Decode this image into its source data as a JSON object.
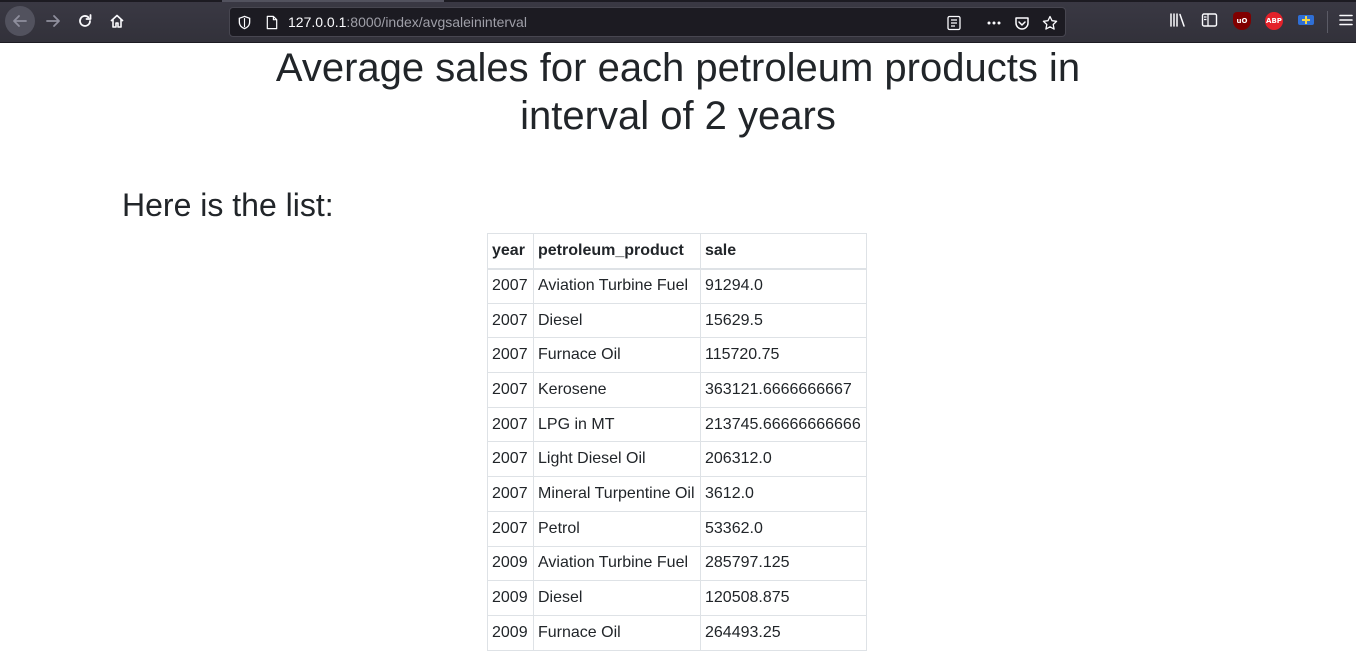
{
  "browser": {
    "url_host": "127.0.0.1",
    "url_path": ":8000/index/avgsaleininterval",
    "extensions": [
      "uBlock Origin",
      "ABP"
    ],
    "extension_labels": {
      "ublock": "uO",
      "abp": "ABP"
    }
  },
  "page": {
    "title": "Average sales for each petroleum products in interval of 2 years",
    "lead": "Here is the list:"
  },
  "table": {
    "headers": [
      "year",
      "petroleum_product",
      "sale"
    ],
    "rows": [
      [
        "2007",
        "Aviation Turbine Fuel",
        "91294.0"
      ],
      [
        "2007",
        "Diesel",
        "15629.5"
      ],
      [
        "2007",
        "Furnace Oil",
        "115720.75"
      ],
      [
        "2007",
        "Kerosene",
        "363121.6666666667"
      ],
      [
        "2007",
        "LPG in MT",
        "213745.66666666666"
      ],
      [
        "2007",
        "Light Diesel Oil",
        "206312.0"
      ],
      [
        "2007",
        "Mineral Turpentine Oil",
        "3612.0"
      ],
      [
        "2007",
        "Petrol",
        "53362.0"
      ],
      [
        "2009",
        "Aviation Turbine Fuel",
        "285797.125"
      ],
      [
        "2009",
        "Diesel",
        "120508.875"
      ],
      [
        "2009",
        "Furnace Oil",
        "264493.25"
      ]
    ]
  }
}
